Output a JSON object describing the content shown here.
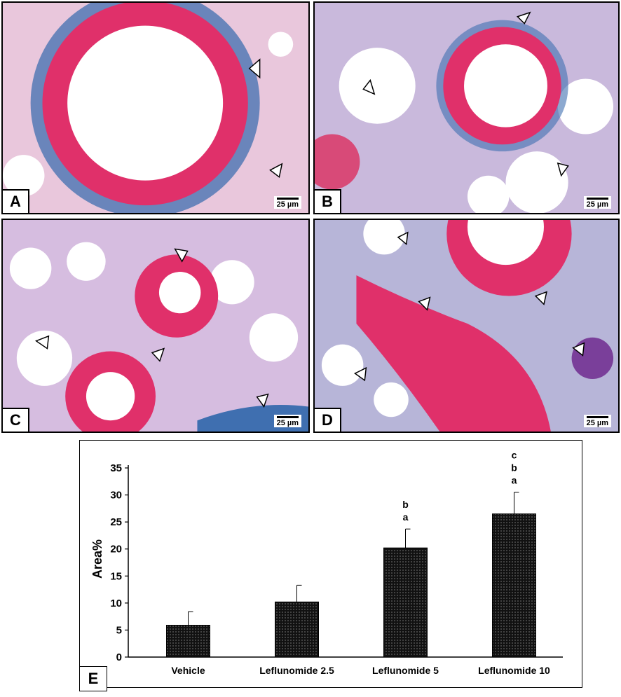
{
  "panels": [
    {
      "label": "A",
      "scale": "25 µm"
    },
    {
      "label": "B",
      "scale": "25 µm"
    },
    {
      "label": "C",
      "scale": "25 µm"
    },
    {
      "label": "D",
      "scale": "25 µm"
    }
  ],
  "chart_panel_label": "E",
  "chart_data": {
    "type": "bar",
    "categories": [
      "Vehicle",
      "Leflunomide 2.5",
      "Leflunomide 5",
      "Leflunomide 10"
    ],
    "values": [
      5.9,
      10.2,
      20.2,
      26.5
    ],
    "errors": [
      2.5,
      3.1,
      3.5,
      4.0
    ],
    "significance": [
      "",
      "",
      "b\na",
      "c\nb\na"
    ],
    "ylabel": "Area%",
    "xlabel": "",
    "ylim": [
      0,
      35
    ],
    "yticks": [
      0,
      5,
      10,
      15,
      20,
      25,
      30,
      35
    ],
    "bar_fill": "#111111",
    "grid": false
  },
  "colors": {
    "stain_red": "#e0306a",
    "stain_blue": "#3f6fb0",
    "stain_purple": "#7a3f9a",
    "background": "#f4eef4"
  }
}
